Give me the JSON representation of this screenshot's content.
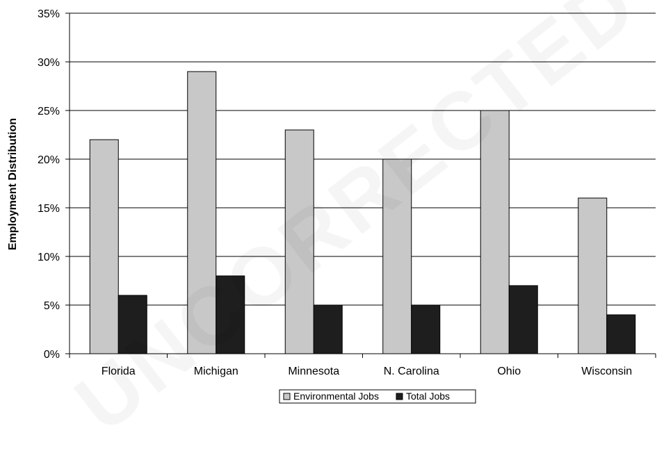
{
  "chart_data": {
    "type": "bar",
    "categories": [
      "Florida",
      "Michigan",
      "Minnesota",
      "N. Carolina",
      "Ohio",
      "Wisconsin"
    ],
    "series": [
      {
        "name": "Environmental Jobs",
        "values": [
          22,
          29,
          23,
          20,
          25,
          16
        ]
      },
      {
        "name": "Total Jobs",
        "values": [
          6,
          8,
          5,
          5,
          7,
          4
        ]
      }
    ],
    "ylabel": "Employment Distribution",
    "xlabel": "",
    "ylim": [
      0,
      35
    ],
    "yticks": [
      "0%",
      "5%",
      "10%",
      "15%",
      "20%",
      "25%",
      "30%",
      "35%"
    ],
    "grid": true,
    "legend_position": "bottom-center",
    "colors": {
      "Environmental Jobs": "#c8c8c8",
      "Total Jobs": "#1e1e1e"
    }
  },
  "watermark": "UNCORRECTED PROOF"
}
